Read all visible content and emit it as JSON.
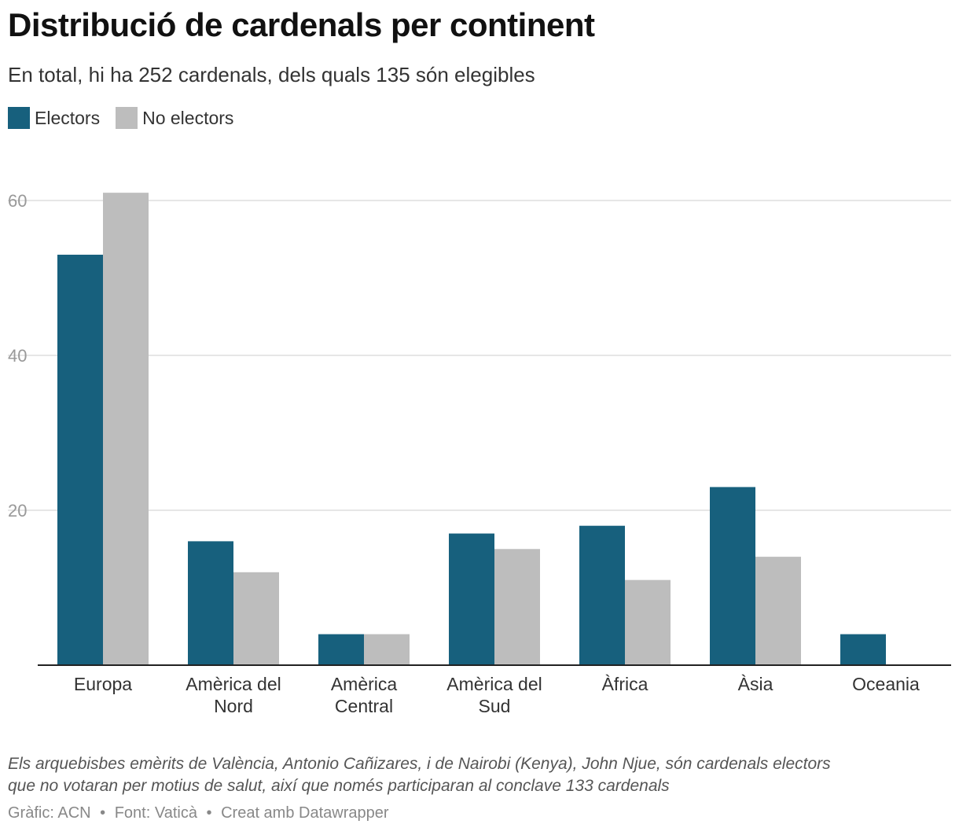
{
  "header": {
    "title": "Distribució de cardenals per continent",
    "subtitle": "En total, hi ha 252 cardenals, dels quals 135 són elegibles"
  },
  "legend": [
    {
      "label": "Electors",
      "color": "#17607d"
    },
    {
      "label": "No electors",
      "color": "#bdbdbd"
    }
  ],
  "chart_data": {
    "type": "bar",
    "title": "Distribució de cardenals per continent",
    "categories": [
      [
        "Europa"
      ],
      [
        "Amèrica del",
        "Nord"
      ],
      [
        "Amèrica",
        "Central"
      ],
      [
        "Amèrica del",
        "Sud"
      ],
      [
        "Àfrica"
      ],
      [
        "Àsia"
      ],
      [
        "Oceania"
      ]
    ],
    "series": [
      {
        "name": "Electors",
        "color": "#17607d",
        "values": [
          53,
          16,
          4,
          17,
          18,
          23,
          4
        ]
      },
      {
        "name": "No electors",
        "color": "#bdbdbd",
        "values": [
          61,
          12,
          4,
          15,
          11,
          14,
          0
        ]
      }
    ],
    "yticks": [
      20,
      40,
      60
    ],
    "ylim": [
      0,
      62
    ],
    "grid": true,
    "xlabel": "",
    "ylabel": ""
  },
  "footer": {
    "note_line1": "Els arquebisbes emèrits de València, Antonio Cañizares, i de Nairobi (Kenya), John Njue, són cardenals electors",
    "note_line2": "que no votaran per motius de salut, així que només participaran al conclave 133 cardenals",
    "credit_chart": "Gràfic: ACN",
    "credit_source": "Font: Vaticà",
    "credit_tool": "Creat amb Datawrapper",
    "separator": "•"
  }
}
